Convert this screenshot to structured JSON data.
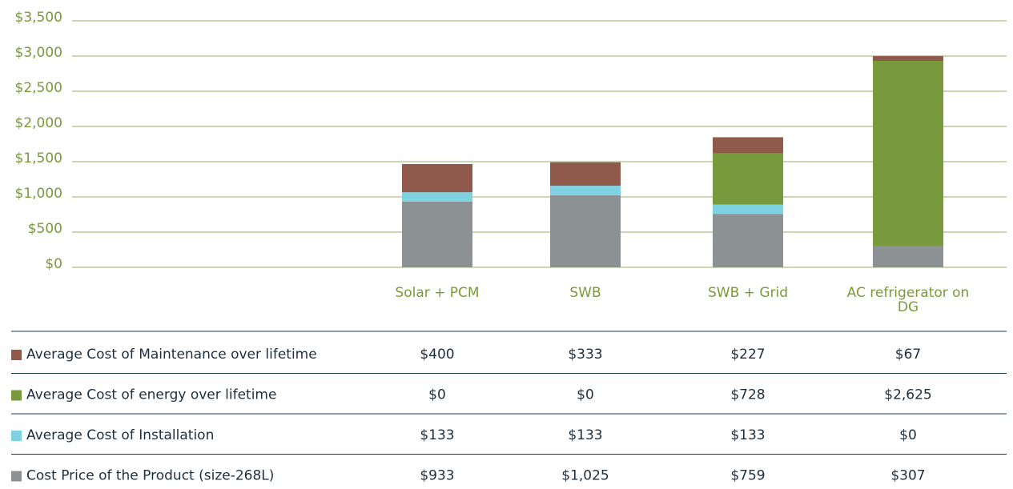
{
  "chart_data": {
    "type": "stacked_bar",
    "categories": [
      "Solar + PCM",
      "SWB",
      "SWB + Grid",
      "AC refrigerator on DG"
    ],
    "series": [
      {
        "name": "Cost Price of the Product (size-268L)",
        "color": "#8c9193",
        "values": [
          933,
          1025,
          759,
          307
        ],
        "value_labels": [
          "$933",
          "$1,025",
          "$759",
          "$307"
        ]
      },
      {
        "name": "Average Cost of Installation",
        "color": "#7fd3e0",
        "values": [
          133,
          133,
          133,
          0
        ],
        "value_labels": [
          "$133",
          "$133",
          "$133",
          "$0"
        ]
      },
      {
        "name": "Average Cost of energy over lifetime",
        "color": "#78993c",
        "values": [
          0,
          0,
          728,
          2625
        ],
        "value_labels": [
          "$0",
          "$0",
          "$728",
          "$2,625"
        ]
      },
      {
        "name": "Average Cost of Maintenance over lifetime",
        "color": "#8f5a4c",
        "values": [
          400,
          333,
          227,
          67
        ],
        "value_labels": [
          "$400",
          "$333",
          "$227",
          "$67"
        ]
      }
    ],
    "ylim": [
      0,
      3500
    ],
    "yticks": [
      {
        "value": 0,
        "label": "$0"
      },
      {
        "value": 500,
        "label": "$500"
      },
      {
        "value": 1000,
        "label": "$1,000"
      },
      {
        "value": 1500,
        "label": "$1,500"
      },
      {
        "value": 2000,
        "label": "$2,000"
      },
      {
        "value": 2500,
        "label": "$2,500"
      },
      {
        "value": 3000,
        "label": "$3,000"
      },
      {
        "value": 3500,
        "label": "$3,500"
      }
    ],
    "grid": true
  }
}
